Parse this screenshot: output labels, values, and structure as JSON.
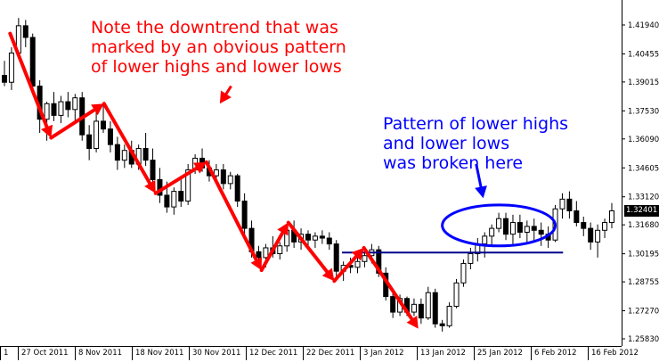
{
  "chart_data": {
    "type": "candlestick",
    "y_ticks": [
      "1.41940",
      "1.40455",
      "1.39015",
      "1.37530",
      "1.36090",
      "1.34605",
      "1.33120",
      "1.31680",
      "1.30195",
      "1.28755",
      "1.27270",
      "1.25830"
    ],
    "x_ticks": [
      "1",
      "27 Oct 2011",
      "8 Nov 2011",
      "18 Nov 2011",
      "30 Nov 2011",
      "12 Dec 2011",
      "22 Dec 2011",
      "3 Jan 2012",
      "13 Jan 2012",
      "25 Jan 2012",
      "6 Feb 2012",
      "16 Feb 2012"
    ],
    "last_price_label": "1.32401",
    "candles": [
      [
        1.3935,
        1.401,
        1.388,
        1.39
      ],
      [
        1.39,
        1.408,
        1.386,
        1.405
      ],
      [
        1.405,
        1.423,
        1.402,
        1.419
      ],
      [
        1.419,
        1.422,
        1.408,
        1.413
      ],
      [
        1.413,
        1.415,
        1.386,
        1.388
      ],
      [
        1.388,
        1.391,
        1.364,
        1.371
      ],
      [
        1.371,
        1.38,
        1.36,
        1.379
      ],
      [
        1.379,
        1.385,
        1.37,
        1.373
      ],
      [
        1.373,
        1.383,
        1.369,
        1.38
      ],
      [
        1.38,
        1.385,
        1.372,
        1.376
      ],
      [
        1.376,
        1.384,
        1.37,
        1.382
      ],
      [
        1.382,
        1.385,
        1.36,
        1.363
      ],
      [
        1.363,
        1.368,
        1.35,
        1.356
      ],
      [
        1.356,
        1.376,
        1.354,
        1.37
      ],
      [
        1.37,
        1.379,
        1.364,
        1.366
      ],
      [
        1.366,
        1.37,
        1.354,
        1.358
      ],
      [
        1.358,
        1.362,
        1.345,
        1.35
      ],
      [
        1.35,
        1.358,
        1.346,
        1.355
      ],
      [
        1.355,
        1.36,
        1.346,
        1.348
      ],
      [
        1.348,
        1.358,
        1.345,
        1.356
      ],
      [
        1.356,
        1.364,
        1.347,
        1.35
      ],
      [
        1.35,
        1.356,
        1.337,
        1.34
      ],
      [
        1.34,
        1.346,
        1.328,
        1.332
      ],
      [
        1.332,
        1.339,
        1.323,
        1.326
      ],
      [
        1.326,
        1.336,
        1.322,
        1.334
      ],
      [
        1.334,
        1.342,
        1.326,
        1.329
      ],
      [
        1.329,
        1.348,
        1.327,
        1.345
      ],
      [
        1.345,
        1.353,
        1.343,
        1.351
      ],
      [
        1.351,
        1.356,
        1.344,
        1.346
      ],
      [
        1.346,
        1.35,
        1.339,
        1.342
      ],
      [
        1.342,
        1.348,
        1.338,
        1.345
      ],
      [
        1.345,
        1.348,
        1.335,
        1.338
      ],
      [
        1.338,
        1.344,
        1.335,
        1.342
      ],
      [
        1.342,
        1.343,
        1.326,
        1.329
      ],
      [
        1.329,
        1.333,
        1.312,
        1.315
      ],
      [
        1.315,
        1.319,
        1.3,
        1.303
      ],
      [
        1.303,
        1.306,
        1.298,
        1.3
      ],
      [
        1.3,
        1.307,
        1.295,
        1.305
      ],
      [
        1.305,
        1.311,
        1.3,
        1.302
      ],
      [
        1.302,
        1.308,
        1.299,
        1.306
      ],
      [
        1.306,
        1.316,
        1.303,
        1.314
      ],
      [
        1.314,
        1.319,
        1.305,
        1.308
      ],
      [
        1.308,
        1.315,
        1.304,
        1.312
      ],
      [
        1.312,
        1.314,
        1.306,
        1.309
      ],
      [
        1.309,
        1.313,
        1.305,
        1.311
      ],
      [
        1.311,
        1.314,
        1.307,
        1.31
      ],
      [
        1.31,
        1.313,
        1.304,
        1.307
      ],
      [
        1.307,
        1.309,
        1.289,
        1.293
      ],
      [
        1.293,
        1.298,
        1.288,
        1.296
      ],
      [
        1.296,
        1.3,
        1.292,
        1.295
      ],
      [
        1.295,
        1.301,
        1.292,
        1.298
      ],
      [
        1.298,
        1.305,
        1.295,
        1.301
      ],
      [
        1.301,
        1.307,
        1.297,
        1.304
      ],
      [
        1.304,
        1.306,
        1.29,
        1.292
      ],
      [
        1.292,
        1.295,
        1.278,
        1.28
      ],
      [
        1.28,
        1.283,
        1.269,
        1.272
      ],
      [
        1.272,
        1.281,
        1.27,
        1.279
      ],
      [
        1.279,
        1.28,
        1.27,
        1.272
      ],
      [
        1.272,
        1.279,
        1.27,
        1.276
      ],
      [
        1.276,
        1.279,
        1.266,
        1.269
      ],
      [
        1.269,
        1.285,
        1.268,
        1.282
      ],
      [
        1.282,
        1.284,
        1.264,
        1.266
      ],
      [
        1.266,
        1.268,
        1.262,
        1.265
      ],
      [
        1.265,
        1.277,
        1.264,
        1.275
      ],
      [
        1.275,
        1.289,
        1.274,
        1.287
      ],
      [
        1.287,
        1.299,
        1.285,
        1.297
      ],
      [
        1.297,
        1.305,
        1.294,
        1.302
      ],
      [
        1.302,
        1.31,
        1.298,
        1.307
      ],
      [
        1.307,
        1.313,
        1.3,
        1.311
      ],
      [
        1.311,
        1.317,
        1.306,
        1.315
      ],
      [
        1.315,
        1.323,
        1.313,
        1.32
      ],
      [
        1.32,
        1.323,
        1.309,
        1.312
      ],
      [
        1.312,
        1.322,
        1.307,
        1.318
      ],
      [
        1.318,
        1.322,
        1.31,
        1.313
      ],
      [
        1.313,
        1.319,
        1.307,
        1.316
      ],
      [
        1.316,
        1.32,
        1.308,
        1.314
      ],
      [
        1.314,
        1.318,
        1.306,
        1.312
      ],
      [
        1.312,
        1.316,
        1.305,
        1.309
      ],
      [
        1.309,
        1.327,
        1.308,
        1.325
      ],
      [
        1.325,
        1.333,
        1.32,
        1.33
      ],
      [
        1.33,
        1.334,
        1.32,
        1.324
      ],
      [
        1.324,
        1.329,
        1.316,
        1.318
      ],
      [
        1.318,
        1.321,
        1.311,
        1.315
      ],
      [
        1.315,
        1.318,
        1.304,
        1.308
      ],
      [
        1.308,
        1.317,
        1.3,
        1.314
      ],
      [
        1.314,
        1.32,
        1.31,
        1.318
      ],
      [
        1.318,
        1.328,
        1.315,
        1.324
      ]
    ],
    "horizontal_line": 1.3026,
    "red_zigzag": [
      [
        0.8,
        1.415
      ],
      [
        6.6,
        1.3615
      ],
      [
        14.1,
        1.379
      ],
      [
        21.4,
        1.333
      ],
      [
        28.6,
        1.349
      ],
      [
        36.4,
        1.2935
      ],
      [
        40.2,
        1.318
      ],
      [
        46.7,
        1.288
      ],
      [
        50.9,
        1.305
      ],
      [
        58.6,
        1.2635
      ]
    ],
    "red_arrow_small": [
      [
        32.1,
        1.388
      ],
      [
        30.5,
        1.379
      ]
    ],
    "blue_ellipse": {
      "cx": 70.0,
      "cy": 1.3165,
      "rx": 8.0,
      "ry": 0.0105
    },
    "blue_arrow": [
      [
        66.8,
        1.348
      ],
      [
        67.8,
        1.3305
      ]
    ],
    "annotations": {
      "red": [
        "Note the downtrend that was",
        "marked by an obvious pattern",
        "of lower highs and lower lows"
      ],
      "blue": [
        "Pattern of lower highs",
        "and lower lows",
        "was broken here"
      ]
    },
    "colors": {
      "bull_body": "#ffffff",
      "bear_body": "#000000",
      "wick": "#000000",
      "annotation_red": "#ff0000",
      "annotation_blue": "#0000ff",
      "support_line": "#00008b"
    }
  }
}
